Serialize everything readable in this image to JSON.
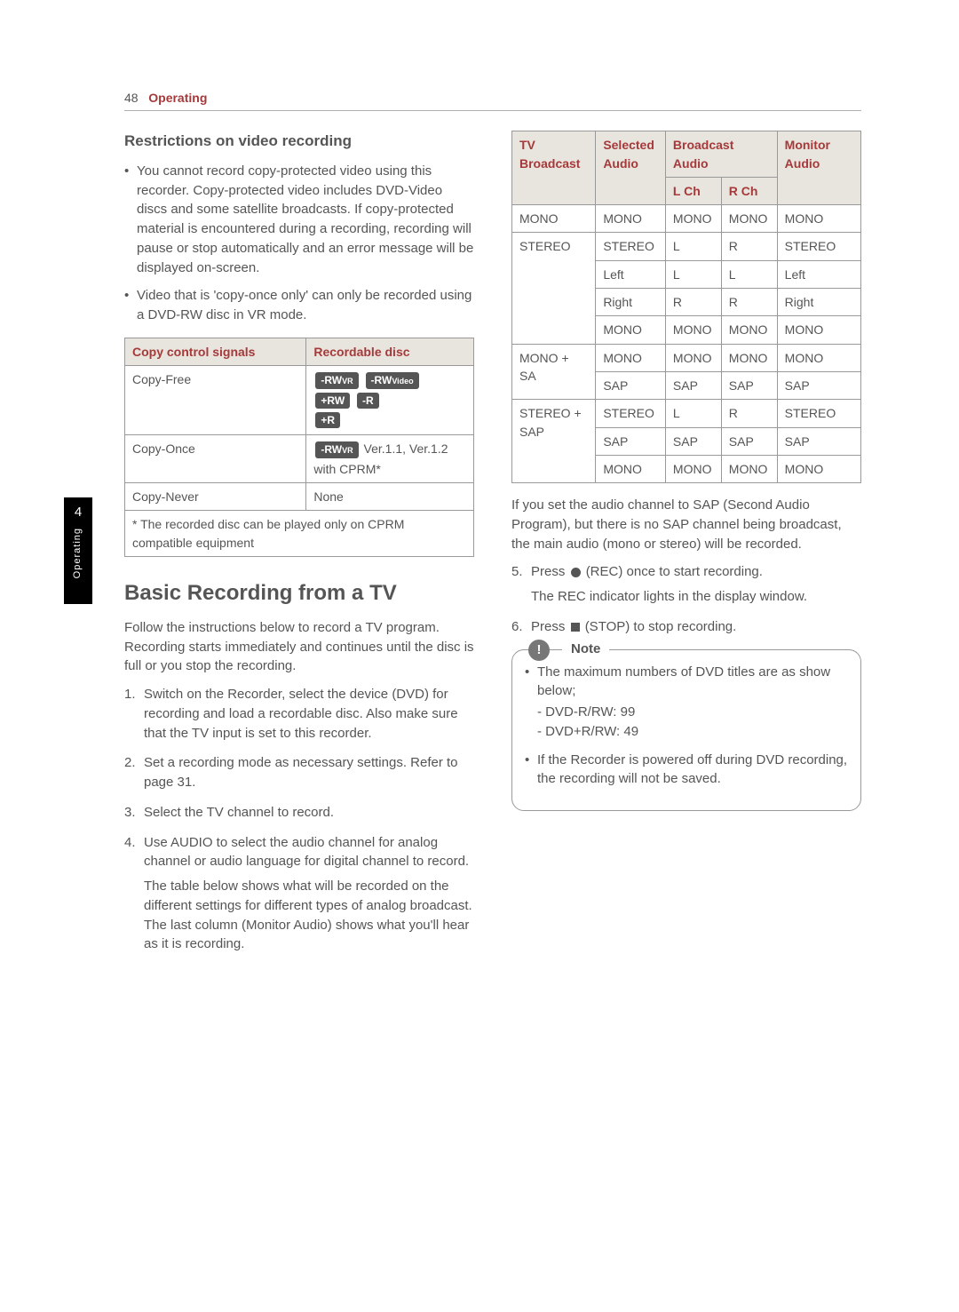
{
  "page": {
    "number": "48",
    "breadcrumb": "Operating"
  },
  "sideTab": {
    "num": "4",
    "label": "Operating"
  },
  "colors": {
    "text": "#555555",
    "accent": "#a63a3a",
    "header_bg": "#e8e4de",
    "table_border": "#999999",
    "badge_bg": "#555555",
    "white": "#ffffff",
    "sidetab_bg": "#000000"
  },
  "left": {
    "restrictions_heading": "Restrictions on video recording",
    "bullets": [
      "You cannot record copy-protected video using this recorder. Copy-protected video includes DVD-Video discs and some satellite broadcasts. If copy-protected material is encountered during a recording, recording will pause or stop automatically and an error message will be displayed on-screen.",
      "Video that is 'copy-once only' can only be recorded using a DVD-RW disc in VR mode."
    ],
    "table1": {
      "headers": [
        "Copy control signals",
        "Recordable disc"
      ],
      "col_widths": [
        "52%",
        "48%"
      ],
      "rows": [
        {
          "label": "Copy-Free",
          "badges": [
            "-RWVR",
            "-RWVideo",
            "+RW",
            "-R",
            "+R"
          ],
          "suffix": ""
        },
        {
          "label": "Copy-Once",
          "badges": [
            "-RWVR"
          ],
          "suffix": "Ver.1.1, Ver.1.2 with CPRM*"
        },
        {
          "label": "Copy-Never",
          "badges": [],
          "suffix": "None"
        }
      ],
      "footnote": "* The recorded disc can be played only on CPRM compatible equipment"
    },
    "sect_heading": "Basic Recording from a TV",
    "sect_intro": "Follow the instructions below to record a TV program. Recording starts immediately and continues until the disc is full or you stop the recording.",
    "steps": [
      {
        "t": "Switch on the Recorder, select the device (DVD) for recording and load a recordable disc. Also make sure that the TV input is set to this recorder."
      },
      {
        "t": "Set a recording mode as necessary settings. Refer to page 31."
      },
      {
        "t": " Select the TV channel to record."
      },
      {
        "t": "Use AUDIO to select the audio channel for analog channel or audio language for digital channel to record.",
        "sub": "The table below shows what will be recorded on the different settings for different types of analog broadcast. The last column (Monitor Audio) shows what you'll hear as it is recording."
      }
    ]
  },
  "right": {
    "table2": {
      "headers": {
        "h1": "TV Broadcast",
        "h2": "Selected Audio",
        "h3": "Broadcast Audio",
        "h3a": "L Ch",
        "h3b": "R Ch",
        "h4": "Monitor Audio"
      },
      "col_widths": [
        "24%",
        "20%",
        "16%",
        "16%",
        "24%"
      ],
      "groups": [
        {
          "broadcast": "MONO",
          "rows": [
            [
              "MONO",
              "MONO",
              "MONO",
              "MONO"
            ]
          ]
        },
        {
          "broadcast": "STEREO",
          "rows": [
            [
              "STEREO",
              "L",
              "R",
              "STEREO"
            ],
            [
              "Left",
              "L",
              "L",
              "Left"
            ],
            [
              "Right",
              "R",
              "R",
              "Right"
            ],
            [
              "MONO",
              "MONO",
              "MONO",
              "MONO"
            ]
          ]
        },
        {
          "broadcast": "MONO + SA",
          "rows": [
            [
              "MONO",
              "MONO",
              "MONO",
              "MONO"
            ],
            [
              "SAP",
              "SAP",
              "SAP",
              "SAP"
            ]
          ]
        },
        {
          "broadcast": "STEREO + SAP",
          "rows": [
            [
              "STEREO",
              "L",
              "R",
              "STEREO"
            ],
            [
              "SAP",
              "SAP",
              "SAP",
              "SAP"
            ],
            [
              "MONO",
              "MONO",
              "MONO",
              "MONO"
            ]
          ]
        }
      ]
    },
    "sap_note": "If you set the audio channel to SAP (Second Audio Program), but there is no SAP channel being broadcast, the main audio (mono or stereo) will be recorded.",
    "step5a": "Press ",
    "step5b": " (REC) once to start recording.",
    "step5c": "The REC indicator lights in the display window.",
    "step6a": "Press ",
    "step6b": " (STOP) to stop recording.",
    "note_label": "Note",
    "note_items": [
      "The maximum numbers of DVD titles are as show below;",
      "If the Recorder is powered off during DVD recording, the recording will not be saved."
    ],
    "note_sub": [
      "- DVD-R/RW: 99",
      "- DVD+R/RW: 49"
    ]
  }
}
